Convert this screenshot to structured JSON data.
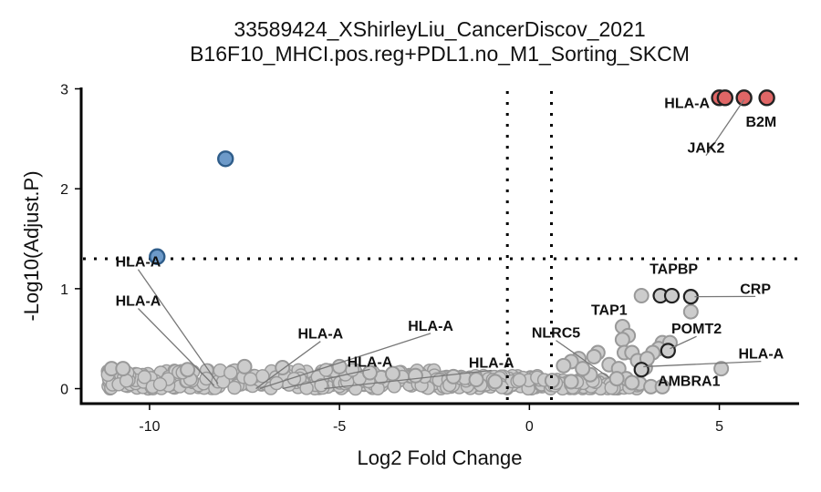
{
  "chart_data": {
    "type": "scatter",
    "title": "33589424_XShirleyLiu_CancerDiscov_2021",
    "subtitle": "B16F10_MHCI.pos.reg+PDL1.no_M1_Sorting_SKCM",
    "xlabel": "Log2 Fold Change",
    "ylabel": "-Log10(Adjust.P)",
    "xlim": [
      -11.8,
      7.1
    ],
    "ylim": [
      -0.15,
      3.05
    ],
    "x_ticks": [
      -10,
      -5,
      0,
      5
    ],
    "x_tick_labels": [
      "-10",
      "-5",
      "0",
      "5"
    ],
    "y_ticks": [
      0,
      1,
      2,
      3
    ],
    "y_tick_labels": [
      "0",
      "1",
      "2",
      "3"
    ],
    "thresholds": {
      "x": [
        -0.58,
        0.58
      ],
      "y": 1.3
    },
    "grid": false,
    "legend": "none",
    "colors": {
      "up": "#e06666",
      "down": "#6d9ac9",
      "ns": "#cccccc",
      "ns_stroke": "#999999",
      "highlight_stroke": "#222222"
    },
    "points": {
      "up": [
        {
          "x": 5.0,
          "y": 2.91
        },
        {
          "x": 5.15,
          "y": 2.91
        },
        {
          "x": 5.65,
          "y": 2.91
        },
        {
          "x": 6.25,
          "y": 2.91
        }
      ],
      "down": [
        {
          "x": -8.0,
          "y": 2.3
        },
        {
          "x": -9.8,
          "y": 1.32
        }
      ],
      "ns_highlighted": [
        {
          "x": 3.45,
          "y": 0.93
        },
        {
          "x": 3.75,
          "y": 0.93
        },
        {
          "x": 4.25,
          "y": 0.92
        },
        {
          "x": 3.65,
          "y": 0.38
        },
        {
          "x": 2.95,
          "y": 0.19
        }
      ],
      "ns": [
        {
          "x": 2.95,
          "y": 0.93
        },
        {
          "x": 4.25,
          "y": 0.77
        },
        {
          "x": 2.45,
          "y": 0.62
        },
        {
          "x": 2.6,
          "y": 0.53
        },
        {
          "x": 2.45,
          "y": 0.49
        },
        {
          "x": 3.5,
          "y": 0.46
        },
        {
          "x": 3.7,
          "y": 0.46
        },
        {
          "x": 3.4,
          "y": 0.4
        },
        {
          "x": 3.25,
          "y": 0.36
        },
        {
          "x": 2.5,
          "y": 0.36
        },
        {
          "x": 2.7,
          "y": 0.36
        },
        {
          "x": 1.8,
          "y": 0.36
        },
        {
          "x": 1.7,
          "y": 0.32
        },
        {
          "x": 1.3,
          "y": 0.3
        },
        {
          "x": 1.1,
          "y": 0.27
        },
        {
          "x": 0.9,
          "y": 0.23
        },
        {
          "x": 2.1,
          "y": 0.24
        },
        {
          "x": 2.35,
          "y": 0.2
        },
        {
          "x": 3.05,
          "y": 0.21
        },
        {
          "x": 5.05,
          "y": 0.2
        },
        {
          "x": 2.85,
          "y": 0.28
        },
        {
          "x": 3.1,
          "y": 0.3
        },
        {
          "x": 2.55,
          "y": 0.1
        },
        {
          "x": 2.9,
          "y": 0.05
        },
        {
          "x": 3.2,
          "y": 0.02
        },
        {
          "x": 3.5,
          "y": 0.02
        },
        {
          "x": 2.7,
          "y": 0.06
        },
        {
          "x": 2.3,
          "y": 0.1
        },
        {
          "x": 1.6,
          "y": 0.14
        },
        {
          "x": 1.4,
          "y": 0.2
        },
        {
          "x": -11.0,
          "y": 0.2
        },
        {
          "x": -10.7,
          "y": 0.2
        },
        {
          "x": -7.5,
          "y": 0.22
        },
        {
          "x": -5.0,
          "y": 0.22
        },
        {
          "x": -4.2,
          "y": 0.16
        },
        {
          "x": -3.6,
          "y": 0.15
        },
        {
          "x": -2.0,
          "y": 0.12
        },
        {
          "x": -1.4,
          "y": 0.09
        },
        {
          "x": -0.9,
          "y": 0.07
        },
        {
          "x": 0.6,
          "y": 0.08
        },
        {
          "x": 1.1,
          "y": 0.07
        },
        {
          "x": -6.5,
          "y": 0.21
        },
        {
          "x": -9.0,
          "y": 0.19
        },
        {
          "x": -3.0,
          "y": 0.13
        }
      ]
    },
    "annotations": [
      {
        "label": "HLA-A",
        "x": -10.3,
        "y": 1.22,
        "line_to": {
          "x": -8.2,
          "y": 0.05
        }
      },
      {
        "label": "HLA-A",
        "x": -10.3,
        "y": 0.83,
        "line_to": {
          "x": -8.3,
          "y": 0.03
        }
      },
      {
        "label": "HLA-A",
        "x": -5.5,
        "y": 0.5,
        "line_to": {
          "x": -7.2,
          "y": 0.0
        }
      },
      {
        "label": "HLA-A",
        "x": -2.6,
        "y": 0.58,
        "line_to": {
          "x": -7.1,
          "y": 0.0
        }
      },
      {
        "label": "HLA-A",
        "x": -4.2,
        "y": 0.22,
        "line_to": {
          "x": -6.5,
          "y": 0.0
        }
      },
      {
        "label": "HLA-A",
        "x": -1.0,
        "y": 0.21,
        "line_to": {
          "x": -5.4,
          "y": 0.0
        }
      },
      {
        "label": "NLRC5",
        "x": 0.7,
        "y": 0.51,
        "line_to": {
          "x": 2.1,
          "y": 0.11
        }
      },
      {
        "label": "TAP1",
        "x": 2.1,
        "y": 0.74,
        "line_to": null
      },
      {
        "label": "TAPBP",
        "x": 3.8,
        "y": 1.15,
        "line_to": null
      },
      {
        "label": "CRP",
        "x": 5.95,
        "y": 0.95,
        "line_to": {
          "x": 4.35,
          "y": 0.92
        }
      },
      {
        "label": "POMT2",
        "x": 4.4,
        "y": 0.55,
        "line_to": {
          "x": 3.7,
          "y": 0.4
        }
      },
      {
        "label": "HLA-A",
        "x": 6.1,
        "y": 0.3,
        "line_to": {
          "x": 3.0,
          "y": 0.22
        }
      },
      {
        "label": "AMBRA1",
        "x": 4.2,
        "y": 0.03,
        "line_to": null
      },
      {
        "label": "HLA-A",
        "x": 4.15,
        "y": 2.81,
        "line_to": null
      },
      {
        "label": "B2M",
        "x": 6.1,
        "y": 2.62,
        "line_to": null
      },
      {
        "label": "JAK2",
        "x": 4.65,
        "y": 2.36,
        "line_to": {
          "x": 5.65,
          "y": 2.89
        }
      }
    ]
  }
}
